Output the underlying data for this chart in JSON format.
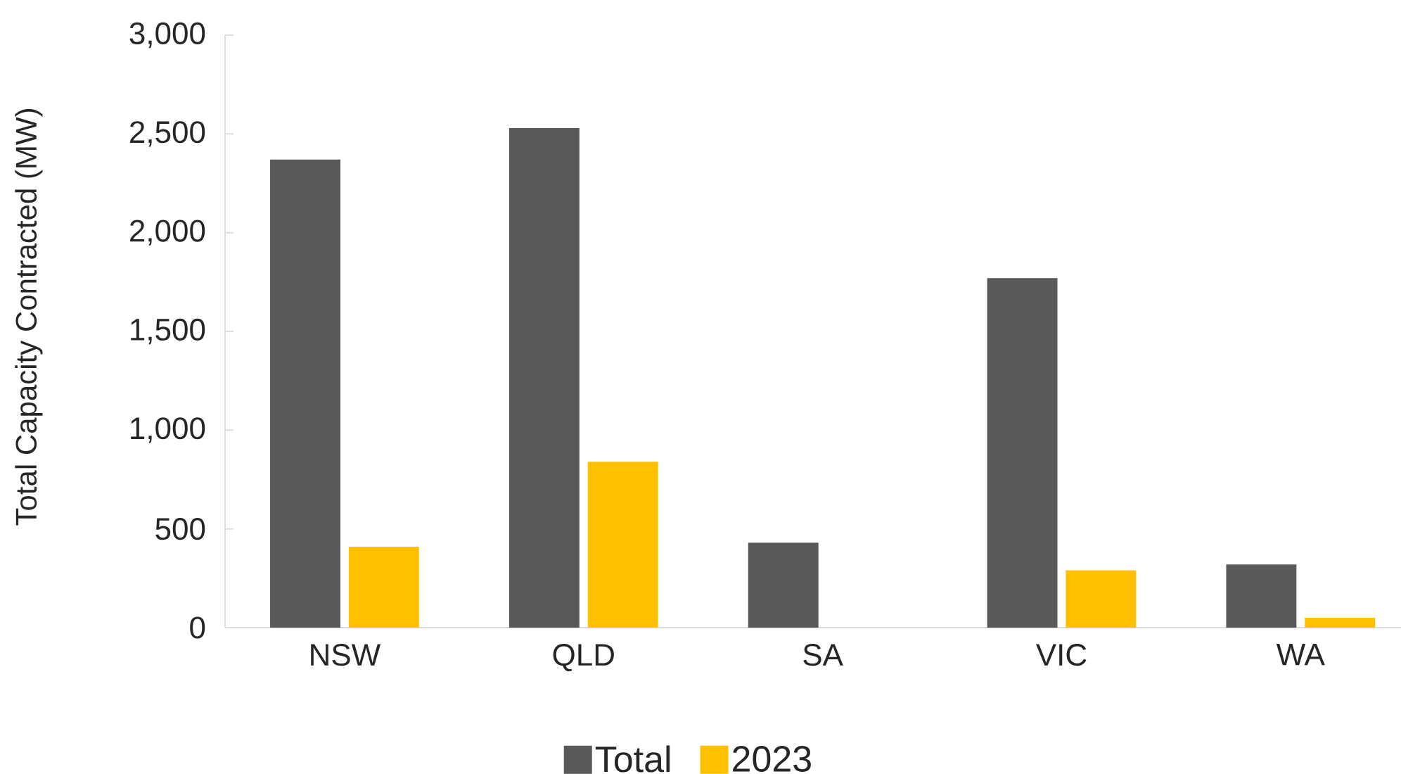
{
  "chart_data": {
    "type": "bar",
    "ylabel": "Total Capacity Contracted (MW)",
    "categories": [
      "NSW",
      "QLD",
      "SA",
      "VIC",
      "WA"
    ],
    "series": [
      {
        "name": "Total",
        "color": "#595959",
        "values": [
          2370,
          2530,
          430,
          1770,
          320
        ]
      },
      {
        "name": "2023",
        "color": "#ffc000",
        "values": [
          410,
          840,
          0,
          290,
          50
        ]
      }
    ],
    "ylim": [
      0,
      3000
    ],
    "yticks": [
      {
        "value": 0,
        "label": "0"
      },
      {
        "value": 500,
        "label": "500"
      },
      {
        "value": 1000,
        "label": "1,000"
      },
      {
        "value": 1500,
        "label": "1,500"
      },
      {
        "value": 2000,
        "label": "2,000"
      },
      {
        "value": 2500,
        "label": "2,500"
      },
      {
        "value": 3000,
        "label": "3,000"
      }
    ],
    "grid": false,
    "legend": "bottom"
  }
}
